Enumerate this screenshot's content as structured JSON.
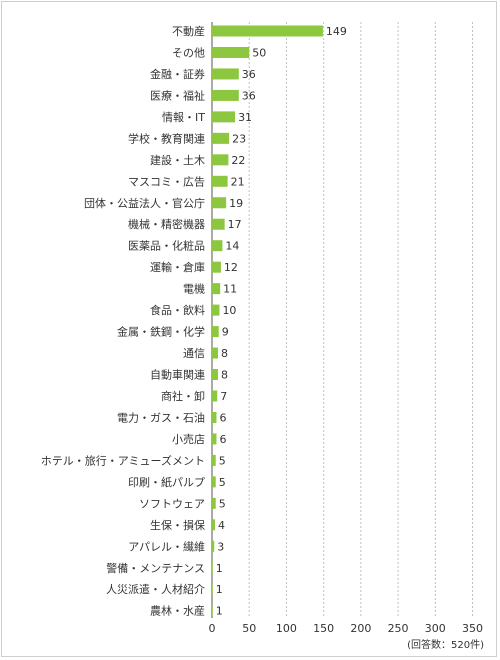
{
  "chart_data": {
    "type": "bar",
    "orientation": "horizontal",
    "categories": [
      "不動産",
      "その他",
      "金融・証券",
      "医療・福祉",
      "情報・IT",
      "学校・教育関連",
      "建設・土木",
      "マスコミ・広告",
      "団体・公益法人・官公庁",
      "機械・精密機器",
      "医薬品・化粧品",
      "運輸・倉庫",
      "電機",
      "食品・飲料",
      "金属・鉄鋼・化学",
      "通信",
      "自動車関連",
      "商社・卸",
      "電力・ガス・石油",
      "小売店",
      "ホテル・旅行・アミューズメント",
      "印刷・紙パルプ",
      "ソフトウェア",
      "生保・損保",
      "アパレル・繊維",
      "警備・メンテナンス",
      "人災派遣・人材紹介",
      "農林・水産"
    ],
    "values": [
      149,
      50,
      36,
      36,
      31,
      23,
      22,
      21,
      19,
      17,
      14,
      12,
      11,
      10,
      9,
      8,
      8,
      7,
      6,
      6,
      5,
      5,
      5,
      4,
      3,
      1,
      1,
      1
    ],
    "xlim": [
      0,
      350
    ],
    "xticks": [
      0,
      50,
      100,
      150,
      200,
      250,
      300,
      350
    ],
    "grid": "vertical dotted",
    "bar_color": "#8dc63f",
    "note": "(回答数：520件)"
  }
}
